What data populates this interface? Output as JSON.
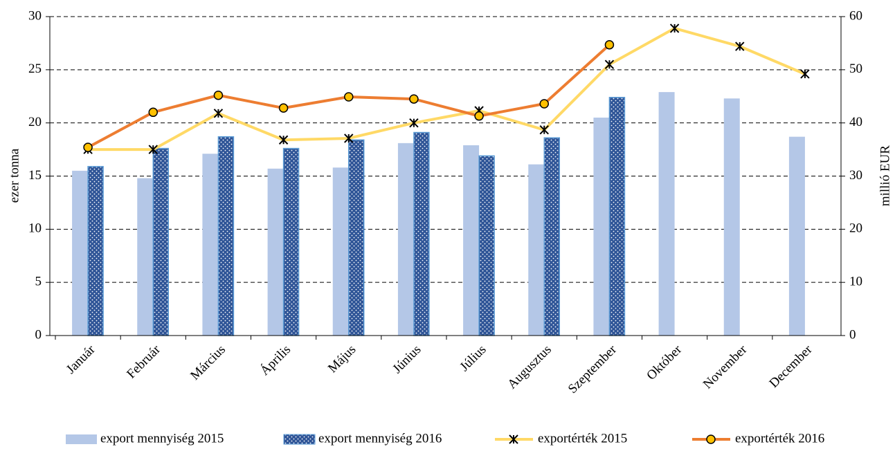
{
  "chart_data": {
    "type": "bar",
    "categories": [
      "Január",
      "Február",
      "Március",
      "Április",
      "Május",
      "Június",
      "Július",
      "Augusztus",
      "Szeptember",
      "Október",
      "November",
      "December"
    ],
    "ylabel": "ezer tonna",
    "y2label": "millió EUR",
    "ylim": [
      0,
      30
    ],
    "yticks": [
      0,
      5,
      10,
      15,
      20,
      25,
      30
    ],
    "y2lim": [
      0,
      60
    ],
    "y2ticks": [
      0,
      10,
      20,
      30,
      40,
      50,
      60
    ],
    "grid": true,
    "legend": "bottom",
    "series": [
      {
        "name": "export mennyiség 2015",
        "type": "bar",
        "color": "#b4c7e7",
        "values": [
          15.5,
          14.8,
          17.1,
          15.7,
          15.8,
          18.1,
          17.9,
          16.1,
          20.5,
          22.9,
          22.3,
          18.7
        ]
      },
      {
        "name": "export mennyiség 2016",
        "type": "bar",
        "color": "#2f5597",
        "values": [
          15.9,
          17.6,
          18.7,
          17.6,
          18.4,
          19.1,
          16.9,
          18.6,
          22.4,
          null,
          null,
          null
        ]
      },
      {
        "name": "exportérték 2015",
        "type": "line",
        "axis": "y2",
        "color": "#ffd966",
        "values": [
          35.0,
          35.0,
          41.8,
          36.8,
          37.1,
          40.0,
          42.3,
          38.7,
          51.0,
          57.8,
          54.4,
          49.2
        ]
      },
      {
        "name": "exportérték 2016",
        "type": "line",
        "axis": "y2",
        "color": "#ed7d31",
        "values": [
          35.4,
          42.0,
          45.2,
          42.8,
          44.9,
          44.5,
          41.3,
          43.6,
          54.7,
          null,
          null,
          null
        ]
      }
    ]
  }
}
